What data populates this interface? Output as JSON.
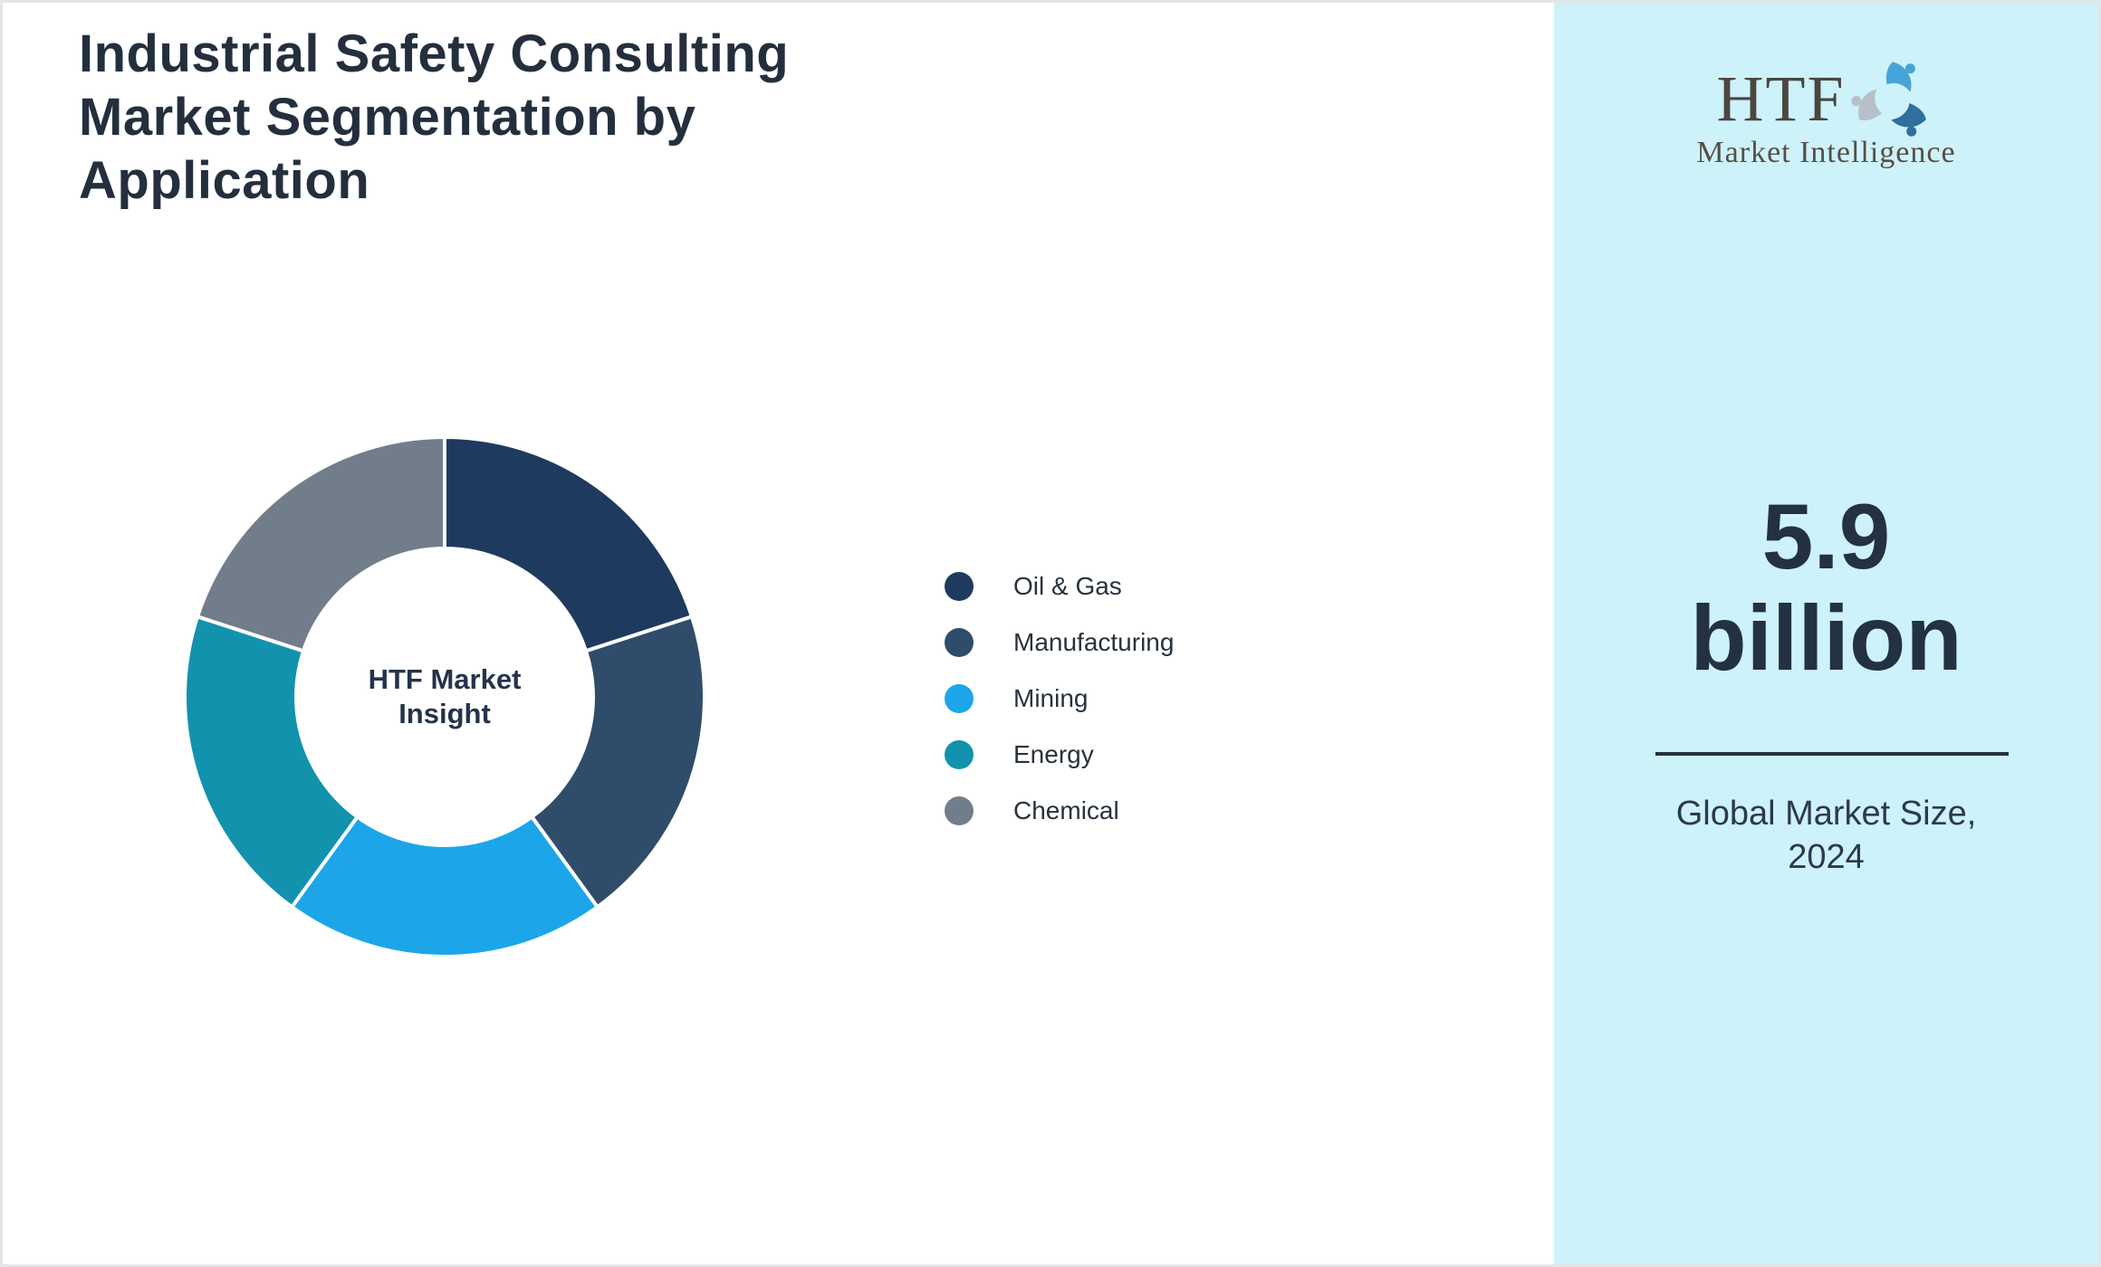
{
  "header": {
    "title": "Industrial Safety Consulting Market Segmentation by Application"
  },
  "chart_data": {
    "type": "pie",
    "subtype": "donut",
    "title": "Industrial Safety Consulting Market Segmentation by Application",
    "categories": [
      "Oil & Gas",
      "Manufacturing",
      "Mining",
      "Energy",
      "Chemical"
    ],
    "values": [
      20,
      20,
      20,
      20,
      20
    ],
    "colors": [
      "#1f3a5f",
      "#2f4d6b",
      "#1ca6e9",
      "#1292ad",
      "#727d8b"
    ],
    "start_angle_deg": -90,
    "direction": "clockwise",
    "inner_radius_ratio": 0.57,
    "segment_gap_color": "#ffffff",
    "center_label_lines": [
      "HTF Market",
      "Insight"
    ],
    "legend_position": "right",
    "grid": false
  },
  "sidebar": {
    "background_color": "#cdf2fa",
    "logo": {
      "text": "HTF",
      "subtext": "Market Intelligence",
      "swirl_icon_colors": [
        "#47a4d8",
        "#306f9e",
        "#b7c0ca"
      ]
    },
    "stat": {
      "value_line1": "5.9",
      "value_line2": "billion",
      "label_line1": "Global Market Size,",
      "label_line2": "2024"
    }
  },
  "colors": {
    "title_text": "#242f3e",
    "legend_text": "#28323e",
    "donut_center_text": "#25334a",
    "stat_text": "#243140",
    "page_border": "#e3e5e9"
  }
}
